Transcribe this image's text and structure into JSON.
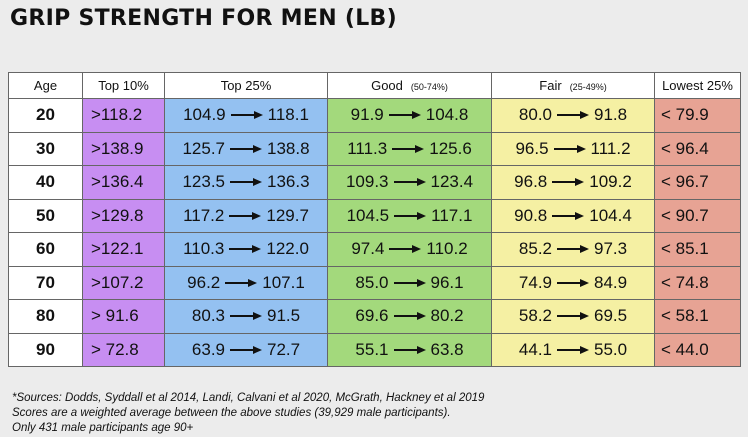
{
  "header": {
    "title": "GRIP STRENGTH FOR MEN (LB)"
  },
  "table": {
    "columns": [
      {
        "label": "Age"
      },
      {
        "label": "Top 10%"
      },
      {
        "label": "Top 25%"
      },
      {
        "label": "Good",
        "note": "(50-74%)"
      },
      {
        "label": "Fair",
        "note": "(25-49%)"
      },
      {
        "label": "Lowest 25%"
      }
    ],
    "rows": [
      [
        "20",
        ">118.2",
        [
          "104.9",
          "118.1"
        ],
        [
          "91.9",
          "104.8"
        ],
        [
          "80.0",
          "91.8"
        ],
        "< 79.9"
      ],
      [
        "30",
        ">138.9",
        [
          "125.7",
          "138.8"
        ],
        [
          "111.3",
          "125.6"
        ],
        [
          "96.5",
          "111.2"
        ],
        "< 96.4"
      ],
      [
        "40",
        ">136.4",
        [
          "123.5",
          "136.3"
        ],
        [
          "109.3",
          "123.4"
        ],
        [
          "96.8",
          "109.2"
        ],
        "< 96.7"
      ],
      [
        "50",
        ">129.8",
        [
          "117.2",
          "129.7"
        ],
        [
          "104.5",
          "117.1"
        ],
        [
          "90.8",
          "104.4"
        ],
        "< 90.7"
      ],
      [
        "60",
        ">122.1",
        [
          "110.3",
          "122.0"
        ],
        [
          "97.4",
          "110.2"
        ],
        [
          "85.2",
          "97.3"
        ],
        "< 85.1"
      ],
      [
        "70",
        ">107.2",
        [
          "96.2",
          "107.1"
        ],
        [
          "85.0",
          "96.1"
        ],
        [
          "74.9",
          "84.9"
        ],
        "< 74.8"
      ],
      [
        "80",
        "> 91.6",
        [
          "80.3",
          "91.5"
        ],
        [
          "69.6",
          "80.2"
        ],
        [
          "58.2",
          "69.5"
        ],
        "< 58.1"
      ],
      [
        "90",
        "> 72.8",
        [
          "63.9",
          "72.7"
        ],
        [
          "55.1",
          "63.8"
        ],
        [
          "44.1",
          "55.0"
        ],
        "< 44.0"
      ]
    ]
  },
  "footnotes": [
    "*Sources:  Dodds, Syddall et al 2014, Landi, Calvani et al 2020, McGrath, Hackney et al 2019",
    "Scores are a weighted average between the above studies (39,929 male participants).",
    "Only 431 male participants age 90+"
  ]
}
